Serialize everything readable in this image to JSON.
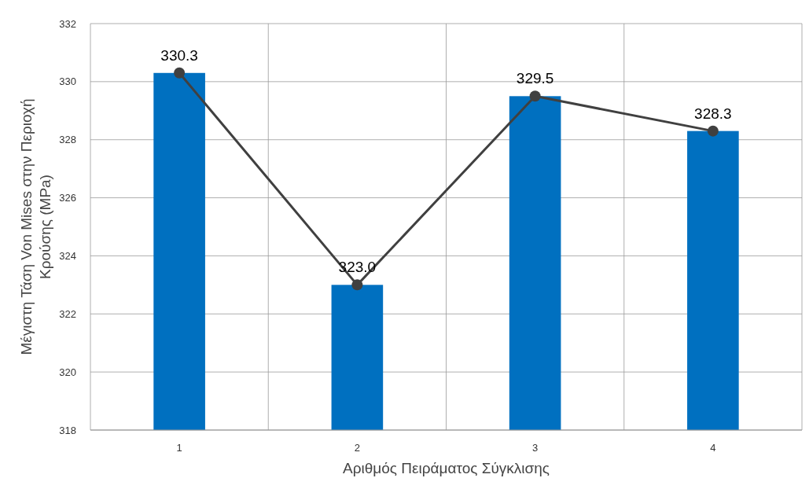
{
  "chart_data": {
    "type": "bar",
    "xlabel": "Αριθμός Πειράματος Σύγκλισης",
    "ylabel": "Μέγιστη Τάση Von Mises στην Περιοχή\nΚρούσης (MPa)",
    "categories": [
      "1",
      "2",
      "3",
      "4"
    ],
    "series": [
      {
        "color": "#0070c0",
        "values": [
          330.3,
          323.0,
          329.5,
          328.3
        ]
      },
      {
        "type": "line",
        "color": "#404040",
        "values": [
          330.3,
          323.0,
          329.5,
          328.3
        ],
        "value_labels": [
          "330.3",
          "323.0",
          "329.5",
          "328.3"
        ]
      }
    ],
    "ylim": [
      318,
      332
    ],
    "yticks": [
      318,
      320,
      322,
      324,
      326,
      328,
      330,
      332
    ],
    "grid": true,
    "marker": "circle"
  }
}
